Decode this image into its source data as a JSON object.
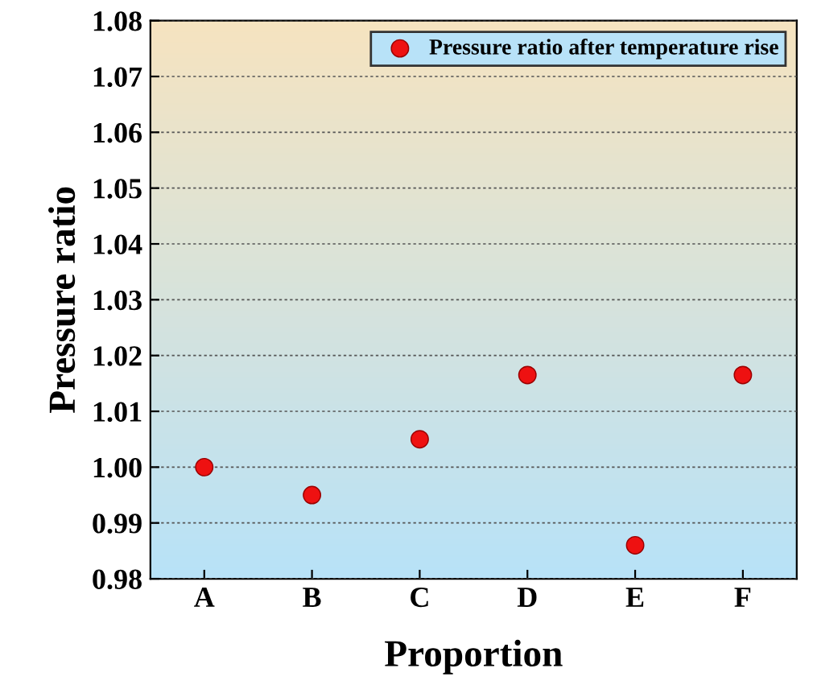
{
  "chart_data": {
    "type": "scatter",
    "xlabel": "Proportion",
    "ylabel": "Pressure ratio",
    "categories": [
      "A",
      "B",
      "C",
      "D",
      "E",
      "F"
    ],
    "series": [
      {
        "name": "Pressure ratio after temperature rise",
        "color": "#ee1111",
        "values": [
          1.0,
          0.995,
          1.005,
          1.0165,
          0.986,
          1.0165
        ]
      }
    ],
    "ylim": [
      0.98,
      1.08
    ],
    "yticks": [
      {
        "value": 0.98,
        "label": "0.98"
      },
      {
        "value": 0.99,
        "label": "0.99"
      },
      {
        "value": 1.0,
        "label": "1.00"
      },
      {
        "value": 1.01,
        "label": "1.01"
      },
      {
        "value": 1.02,
        "label": "1.02"
      },
      {
        "value": 1.03,
        "label": "1.03"
      },
      {
        "value": 1.04,
        "label": "1.04"
      },
      {
        "value": 1.05,
        "label": "1.05"
      },
      {
        "value": 1.06,
        "label": "1.06"
      },
      {
        "value": 1.07,
        "label": "1.07"
      },
      {
        "value": 1.08,
        "label": "1.08"
      }
    ],
    "grid": "y",
    "legend": "top right",
    "marker": "circle"
  }
}
